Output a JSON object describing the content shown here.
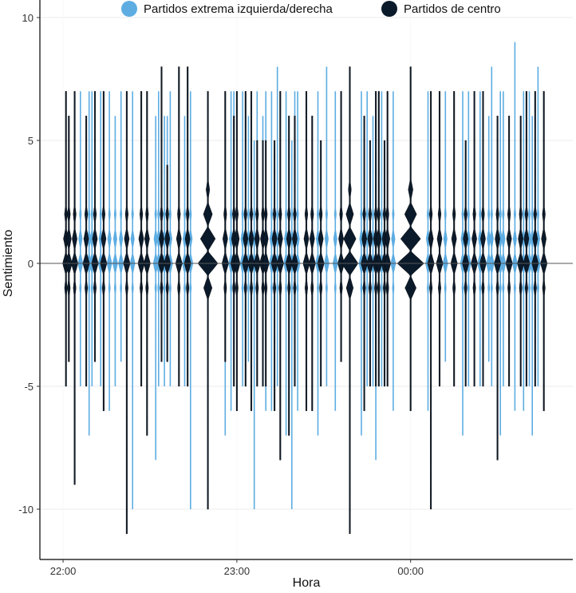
{
  "chart_data": {
    "type": "violin",
    "xlabel": "Hora",
    "ylabel": "Sentimiento",
    "x_ticks": [
      "22:00",
      "23:00",
      "00:00"
    ],
    "y_ticks": [
      10,
      5,
      0,
      -5,
      -10
    ],
    "xlim": [
      "21:52",
      "00:56"
    ],
    "ylim": [
      -12,
      10.4
    ],
    "grid": "horizontal major gridlines",
    "legend_position": "top",
    "legend": [
      "Partidos extrema izquierda/derecha",
      "Partidos de centro"
    ],
    "colors": [
      "#5DADE2",
      "#0B1A2A"
    ],
    "reference_line_y": 0,
    "violins": [
      {
        "time": "22:01",
        "series": 1,
        "min": -5,
        "max": 7
      },
      {
        "time": "22:02",
        "series": 1,
        "min": -4,
        "max": 6
      },
      {
        "time": "22:04",
        "series": 1,
        "min": -9,
        "max": 7
      },
      {
        "time": "22:06",
        "series": 0,
        "min": -5,
        "max": 7
      },
      {
        "time": "22:08",
        "series": 1,
        "min": -5,
        "max": 6
      },
      {
        "time": "22:09",
        "series": 0,
        "min": -7,
        "max": 7
      },
      {
        "time": "22:10",
        "series": 0,
        "min": -5,
        "max": 7
      },
      {
        "time": "22:11",
        "series": 1,
        "min": -4,
        "max": 7
      },
      {
        "time": "22:13",
        "series": 0,
        "min": -5,
        "max": 7
      },
      {
        "time": "22:14",
        "series": 1,
        "min": -6,
        "max": 7
      },
      {
        "time": "22:16",
        "series": 0,
        "min": -6,
        "max": 7
      },
      {
        "time": "22:18",
        "series": 0,
        "min": -5,
        "max": 6
      },
      {
        "time": "22:20",
        "series": 0,
        "min": -4,
        "max": 7
      },
      {
        "time": "22:22",
        "series": 1,
        "min": -11,
        "max": 7
      },
      {
        "time": "22:24",
        "series": 0,
        "min": -10,
        "max": 7
      },
      {
        "time": "22:27",
        "series": 1,
        "min": -5,
        "max": 7
      },
      {
        "time": "22:29",
        "series": 1,
        "min": -7,
        "max": 7
      },
      {
        "time": "22:32",
        "series": 0,
        "min": -8,
        "max": 6
      },
      {
        "time": "22:33",
        "series": 0,
        "min": -5,
        "max": 7
      },
      {
        "time": "22:34",
        "series": 1,
        "min": -4,
        "max": 8
      },
      {
        "time": "22:35",
        "series": 0,
        "min": -5,
        "max": 6
      },
      {
        "time": "22:36",
        "series": 0,
        "min": -4,
        "max": 6
      },
      {
        "time": "22:36",
        "series": 1,
        "min": -4,
        "max": 4
      },
      {
        "time": "22:37",
        "series": 0,
        "min": -5,
        "max": 7
      },
      {
        "time": "22:40",
        "series": 1,
        "min": -5,
        "max": 8
      },
      {
        "time": "22:42",
        "series": 0,
        "min": -5,
        "max": 6
      },
      {
        "time": "22:43",
        "series": 1,
        "min": -5,
        "max": 8
      },
      {
        "time": "22:44",
        "series": 0,
        "min": -10,
        "max": 7
      },
      {
        "time": "22:50",
        "series": 1,
        "min": -10,
        "max": 7,
        "weight": 3
      },
      {
        "time": "22:56",
        "series": 0,
        "min": -7,
        "max": 6
      },
      {
        "time": "22:56",
        "series": 1,
        "min": -4,
        "max": 7
      },
      {
        "time": "22:58",
        "series": 0,
        "min": -6,
        "max": 7
      },
      {
        "time": "22:59",
        "series": 1,
        "min": -5,
        "max": 6
      },
      {
        "time": "22:59",
        "series": 0,
        "min": -4,
        "max": 7
      },
      {
        "time": "23:00",
        "series": 1,
        "min": -6,
        "max": 7
      },
      {
        "time": "23:02",
        "series": 0,
        "min": -5,
        "max": 7
      },
      {
        "time": "23:03",
        "series": 1,
        "min": -5,
        "max": 7
      },
      {
        "time": "23:04",
        "series": 0,
        "min": -4,
        "max": 6
      },
      {
        "time": "23:05",
        "series": 1,
        "min": -6,
        "max": 7
      },
      {
        "time": "23:06",
        "series": 0,
        "min": -10,
        "max": 5
      },
      {
        "time": "23:07",
        "series": 0,
        "min": -5,
        "max": 7
      },
      {
        "time": "23:07",
        "series": 1,
        "min": -5,
        "max": 5
      },
      {
        "time": "23:09",
        "series": 0,
        "min": -5,
        "max": 6
      },
      {
        "time": "23:09",
        "series": 1,
        "min": -5,
        "max": 5
      },
      {
        "time": "23:10",
        "series": 0,
        "min": -6,
        "max": 7
      },
      {
        "time": "23:10",
        "series": 1,
        "min": -5,
        "max": 5
      },
      {
        "time": "23:12",
        "series": 0,
        "min": -6,
        "max": 7
      },
      {
        "time": "23:13",
        "series": 1,
        "min": -6,
        "max": 5
      },
      {
        "time": "23:14",
        "series": 0,
        "min": -5,
        "max": 8
      },
      {
        "time": "23:15",
        "series": 1,
        "min": -8,
        "max": 7
      },
      {
        "time": "23:17",
        "series": 0,
        "min": -7,
        "max": 7
      },
      {
        "time": "23:18",
        "series": 1,
        "min": -7,
        "max": 6
      },
      {
        "time": "23:19",
        "series": 0,
        "min": -10,
        "max": 5
      },
      {
        "time": "23:20",
        "series": 0,
        "min": -5,
        "max": 7
      },
      {
        "time": "23:20",
        "series": 1,
        "min": -5,
        "max": 6
      },
      {
        "time": "23:21",
        "series": 0,
        "min": -6,
        "max": 7
      },
      {
        "time": "23:24",
        "series": 1,
        "min": -6,
        "max": 7
      },
      {
        "time": "23:26",
        "series": 1,
        "min": -6,
        "max": 6
      },
      {
        "time": "23:28",
        "series": 0,
        "min": -7,
        "max": 7
      },
      {
        "time": "23:29",
        "series": 1,
        "min": -5,
        "max": 5
      },
      {
        "time": "23:31",
        "series": 0,
        "min": -5,
        "max": 8
      },
      {
        "time": "23:34",
        "series": 0,
        "min": -6,
        "max": 7
      },
      {
        "time": "23:36",
        "series": 1,
        "min": -4,
        "max": 7
      },
      {
        "time": "23:36",
        "series": 0,
        "min": -4,
        "max": 6
      },
      {
        "time": "23:39",
        "series": 1,
        "min": -11,
        "max": 8,
        "weight": 2.5
      },
      {
        "time": "23:43",
        "series": 0,
        "min": -7,
        "max": 7
      },
      {
        "time": "23:44",
        "series": 1,
        "min": -6,
        "max": 6
      },
      {
        "time": "23:45",
        "series": 0,
        "min": -5,
        "max": 7
      },
      {
        "time": "23:46",
        "series": 1,
        "min": -5,
        "max": 5
      },
      {
        "time": "23:47",
        "series": 0,
        "min": -5,
        "max": 6
      },
      {
        "time": "23:48",
        "series": 1,
        "min": -5,
        "max": 7
      },
      {
        "time": "23:48",
        "series": 0,
        "min": -8,
        "max": 6
      },
      {
        "time": "23:49",
        "series": 1,
        "min": -5,
        "max": 7
      },
      {
        "time": "23:50",
        "series": 0,
        "min": -5,
        "max": 7
      },
      {
        "time": "23:51",
        "series": 1,
        "min": -5,
        "max": 5
      },
      {
        "time": "23:52",
        "series": 1,
        "min": -5,
        "max": 7
      },
      {
        "time": "23:54",
        "series": 0,
        "min": -6,
        "max": 7
      },
      {
        "time": "00:00",
        "series": 1,
        "min": -6,
        "max": 8,
        "weight": 4
      },
      {
        "time": "00:06",
        "series": 0,
        "min": -6,
        "max": 7
      },
      {
        "time": "00:07",
        "series": 1,
        "min": -10,
        "max": 7
      },
      {
        "time": "00:10",
        "series": 1,
        "min": -5,
        "max": 7
      },
      {
        "time": "00:12",
        "series": 0,
        "min": -4,
        "max": 7
      },
      {
        "time": "00:15",
        "series": 1,
        "min": -5,
        "max": 7
      },
      {
        "time": "00:18",
        "series": 0,
        "min": -7,
        "max": 7
      },
      {
        "time": "00:19",
        "series": 1,
        "min": -5,
        "max": 5
      },
      {
        "time": "00:20",
        "series": 0,
        "min": -5,
        "max": 7
      },
      {
        "time": "00:22",
        "series": 1,
        "min": -5,
        "max": 7
      },
      {
        "time": "00:24",
        "series": 0,
        "min": -5,
        "max": 7
      },
      {
        "time": "00:25",
        "series": 1,
        "min": -5,
        "max": 7
      },
      {
        "time": "00:27",
        "series": 0,
        "min": -4,
        "max": 6
      },
      {
        "time": "00:28",
        "series": 0,
        "min": -5,
        "max": 8
      },
      {
        "time": "00:30",
        "series": 1,
        "min": -8,
        "max": 6
      },
      {
        "time": "00:31",
        "series": 0,
        "min": -7,
        "max": 7
      },
      {
        "time": "00:32",
        "series": 0,
        "min": -5,
        "max": 7
      },
      {
        "time": "00:34",
        "series": 1,
        "min": -5,
        "max": 6
      },
      {
        "time": "00:36",
        "series": 0,
        "min": -6,
        "max": 9
      },
      {
        "time": "00:38",
        "series": 1,
        "min": -5,
        "max": 6
      },
      {
        "time": "00:39",
        "series": 0,
        "min": -6,
        "max": 7
      },
      {
        "time": "00:40",
        "series": 1,
        "min": -5,
        "max": 7
      },
      {
        "time": "00:41",
        "series": 0,
        "min": -5,
        "max": 7
      },
      {
        "time": "00:42",
        "series": 0,
        "min": -7,
        "max": 6
      },
      {
        "time": "00:43",
        "series": 1,
        "min": -5,
        "max": 7
      },
      {
        "time": "00:44",
        "series": 0,
        "min": -5,
        "max": 8
      },
      {
        "time": "00:46",
        "series": 1,
        "min": -6,
        "max": 7
      }
    ]
  }
}
